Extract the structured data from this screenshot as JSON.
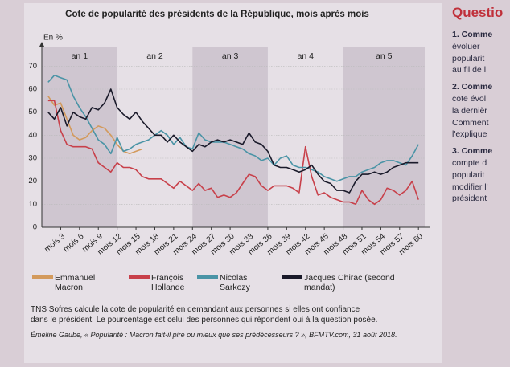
{
  "chart_data": {
    "type": "line",
    "title": "Cote de popularité des présidents de la République, mois après mois",
    "y_label": "En %",
    "periods": [
      {
        "label": "an 1",
        "start": 0,
        "end": 12,
        "shaded": true
      },
      {
        "label": "an 2",
        "start": 12,
        "end": 24,
        "shaded": false
      },
      {
        "label": "an 3",
        "start": 24,
        "end": 36,
        "shaded": true
      },
      {
        "label": "an 4",
        "start": 36,
        "end": 48,
        "shaded": false
      },
      {
        "label": "an 5",
        "start": 48,
        "end": 61,
        "shaded": true
      }
    ],
    "x": [
      1,
      2,
      3,
      4,
      5,
      6,
      7,
      8,
      9,
      10,
      11,
      12,
      13,
      14,
      15,
      16,
      17,
      18,
      19,
      20,
      21,
      22,
      23,
      24,
      25,
      26,
      27,
      28,
      29,
      30,
      31,
      32,
      33,
      34,
      35,
      36,
      37,
      38,
      39,
      40,
      41,
      42,
      43,
      44,
      45,
      46,
      47,
      48,
      49,
      50,
      51,
      52,
      53,
      54,
      55,
      56,
      57,
      58,
      59,
      60
    ],
    "xlim": [
      0,
      61
    ],
    "xticks": [
      {
        "value": 3,
        "label": "mois 3"
      },
      {
        "value": 6,
        "label": "mois 6"
      },
      {
        "value": 9,
        "label": "mois 9"
      },
      {
        "value": 12,
        "label": "mois 12"
      },
      {
        "value": 15,
        "label": "mois 15"
      },
      {
        "value": 18,
        "label": "mois 18"
      },
      {
        "value": 21,
        "label": "mois 21"
      },
      {
        "value": 24,
        "label": "mois 24"
      },
      {
        "value": 27,
        "label": "mois 27"
      },
      {
        "value": 30,
        "label": "mois 30"
      },
      {
        "value": 33,
        "label": "mois 33"
      },
      {
        "value": 36,
        "label": "mois 36"
      },
      {
        "value": 39,
        "label": "mois 39"
      },
      {
        "value": 42,
        "label": "mois 42"
      },
      {
        "value": 45,
        "label": "mois 45"
      },
      {
        "value": 48,
        "label": "mois 48"
      },
      {
        "value": 51,
        "label": "mois 51"
      },
      {
        "value": 54,
        "label": "mois 54"
      },
      {
        "value": 57,
        "label": "mois 57"
      },
      {
        "value": 60,
        "label": "mois 60"
      }
    ],
    "ylim": [
      0,
      75
    ],
    "yticks": [
      0,
      10,
      20,
      30,
      40,
      50,
      60,
      70
    ],
    "series": [
      {
        "name": "Emmanuel Macron",
        "color": "#d39a5c",
        "values": [
          57,
          53,
          54,
          47,
          40,
          38,
          39,
          42,
          44,
          43,
          40,
          36,
          33,
          32,
          33,
          34,
          null,
          null,
          null,
          null,
          null,
          null,
          null,
          null,
          null,
          null,
          null,
          null,
          null,
          null,
          null,
          null,
          null,
          null,
          null,
          null,
          null,
          null,
          null,
          null,
          null,
          null,
          null,
          null,
          null,
          null,
          null,
          null,
          null,
          null,
          null,
          null,
          null,
          null,
          null,
          null,
          null,
          null,
          null,
          null
        ]
      },
      {
        "name": "François Hollande",
        "color": "#c8404a",
        "values": [
          55,
          55,
          42,
          36,
          35,
          35,
          35,
          34,
          28,
          26,
          24,
          28,
          26,
          26,
          25,
          22,
          21,
          21,
          21,
          19,
          17,
          20,
          18,
          16,
          19,
          16,
          17,
          13,
          14,
          13,
          15,
          19,
          23,
          22,
          18,
          16,
          18,
          18,
          18,
          17,
          15,
          35,
          22,
          14,
          15,
          13,
          12,
          11,
          11,
          10,
          16,
          12,
          10,
          12,
          17,
          16,
          14,
          16,
          20,
          12
        ]
      },
      {
        "name": "Nicolas Sarkozy",
        "color": "#4a94a6",
        "values": [
          63,
          66,
          65,
          64,
          57,
          52,
          48,
          43,
          38,
          36,
          32,
          39,
          33,
          34,
          36,
          37,
          38,
          40,
          42,
          40,
          36,
          39,
          35,
          34,
          41,
          38,
          37,
          37,
          37,
          36,
          35,
          34,
          32,
          31,
          29,
          30,
          27,
          30,
          31,
          27,
          26,
          26,
          25,
          24,
          22,
          21,
          20,
          21,
          22,
          22,
          24,
          25,
          26,
          28,
          29,
          29,
          28,
          27,
          31,
          36
        ]
      },
      {
        "name": "Jacques Chirac (second mandat)",
        "color": "#1a1a2a",
        "values": [
          50,
          47,
          52,
          44,
          50,
          48,
          47,
          52,
          51,
          54,
          60,
          52,
          49,
          47,
          50,
          46,
          43,
          40,
          40,
          37,
          40,
          37,
          35,
          33,
          36,
          35,
          37,
          38,
          37,
          38,
          37,
          36,
          41,
          37,
          36,
          33,
          27,
          26,
          26,
          25,
          24,
          25,
          27,
          23,
          20,
          19,
          16,
          16,
          15,
          20,
          23,
          23,
          24,
          23,
          24,
          26,
          27,
          28,
          28,
          28
        ]
      }
    ],
    "notes": [
      "TNS Sofres calcule la cote de popularité en demandant aux personnes si elles ont confiance",
      "dans le président. Le pourcentage est celui des personnes qui répondent oui à la question posée."
    ],
    "source": "Émeline Gaube, « Popularité : Macron fait-il pire ou mieux que ses prédécesseurs ? », BFMTV.com, 31 août 2018."
  },
  "sidebar": {
    "title": "Questio",
    "lines": [
      "1. Comme",
      "évoluer l",
      "popularit",
      "au fil de l",
      "2. Comme",
      "cote évol",
      "la dernièr",
      "Comment",
      "l'explique",
      "3. Comme",
      "compte d",
      "popularit",
      "modifier l'",
      "président"
    ]
  }
}
